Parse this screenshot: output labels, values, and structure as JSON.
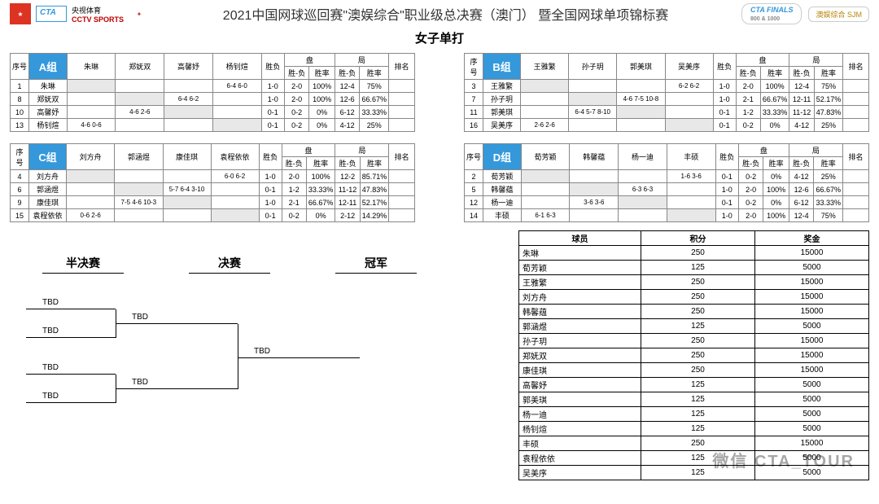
{
  "header": {
    "cctv_cn": "央视体育",
    "cctv_en": "CCTV SPORTS",
    "title": "2021中国网球巡回赛\"澳娱综合\"职业级总决赛（澳门） 暨全国网球单项锦标赛",
    "finals_badge": "CTA FINALS",
    "finals_sub": "800 & 1000",
    "sjm": "澳娱综合 SJM",
    "subtitle": "女子单打"
  },
  "group_headers": {
    "seq": "序号",
    "wl": "胜负",
    "pan": "盘",
    "ju": "局",
    "rank": "排名",
    "sf": "胜-负",
    "sl": "胜率"
  },
  "groups": [
    {
      "name": "A组",
      "players": [
        "朱琳",
        "郑妩双",
        "高馨妤",
        "杨钊煊"
      ],
      "rows": [
        {
          "seq": "1",
          "name": "朱琳",
          "vs": [
            "",
            "",
            "",
            "6-4 6-0"
          ],
          "wl": "1-0",
          "psf": "2-0",
          "psl": "100%",
          "jsf": "12-4",
          "jsl": "75%",
          "rank": ""
        },
        {
          "seq": "8",
          "name": "郑妩双",
          "vs": [
            "",
            "",
            "6-4 6-2",
            ""
          ],
          "wl": "1-0",
          "psf": "2-0",
          "psl": "100%",
          "jsf": "12-6",
          "jsl": "66.67%",
          "rank": ""
        },
        {
          "seq": "10",
          "name": "高馨妤",
          "vs": [
            "",
            "4-6 2-6",
            "",
            ""
          ],
          "wl": "0-1",
          "psf": "0-2",
          "psl": "0%",
          "jsf": "6-12",
          "jsl": "33.33%",
          "rank": ""
        },
        {
          "seq": "13",
          "name": "杨钊煊",
          "vs": [
            "4-6 0-6",
            "",
            "",
            ""
          ],
          "wl": "0-1",
          "psf": "0-2",
          "psl": "0%",
          "jsf": "4-12",
          "jsl": "25%",
          "rank": ""
        }
      ]
    },
    {
      "name": "B组",
      "players": [
        "王雅繁",
        "孙子玥",
        "郭美琪",
        "吴美序"
      ],
      "rows": [
        {
          "seq": "3",
          "name": "王雅繁",
          "vs": [
            "",
            "",
            "",
            "6-2 6-2"
          ],
          "wl": "1-0",
          "psf": "2-0",
          "psl": "100%",
          "jsf": "12-4",
          "jsl": "75%",
          "rank": ""
        },
        {
          "seq": "7",
          "name": "孙子玥",
          "vs": [
            "",
            "",
            "4-6 7-5 10-8",
            ""
          ],
          "wl": "1-0",
          "psf": "2-1",
          "psl": "66.67%",
          "jsf": "12-11",
          "jsl": "52.17%",
          "rank": ""
        },
        {
          "seq": "11",
          "name": "郭美琪",
          "vs": [
            "",
            "6-4 5-7 8-10",
            "",
            ""
          ],
          "wl": "0-1",
          "psf": "1-2",
          "psl": "33.33%",
          "jsf": "11-12",
          "jsl": "47.83%",
          "rank": ""
        },
        {
          "seq": "16",
          "name": "吴美序",
          "vs": [
            "2-6 2-6",
            "",
            "",
            ""
          ],
          "wl": "0-1",
          "psf": "0-2",
          "psl": "0%",
          "jsf": "4-12",
          "jsl": "25%",
          "rank": ""
        }
      ]
    },
    {
      "name": "C组",
      "players": [
        "刘方舟",
        "郭涵煜",
        "康佳琪",
        "袁程依依"
      ],
      "rows": [
        {
          "seq": "4",
          "name": "刘方舟",
          "vs": [
            "",
            "",
            "",
            "6-0 6-2"
          ],
          "wl": "1-0",
          "psf": "2-0",
          "psl": "100%",
          "jsf": "12-2",
          "jsl": "85.71%",
          "rank": ""
        },
        {
          "seq": "6",
          "name": "郭涵煜",
          "vs": [
            "",
            "",
            "5-7 6-4  3-10",
            ""
          ],
          "wl": "0-1",
          "psf": "1-2",
          "psl": "33.33%",
          "jsf": "11-12",
          "jsl": "47.83%",
          "rank": ""
        },
        {
          "seq": "9",
          "name": "康佳琪",
          "vs": [
            "",
            "7-5 4-6  10-3",
            "",
            ""
          ],
          "wl": "1-0",
          "psf": "2-1",
          "psl": "66.67%",
          "jsf": "12-11",
          "jsl": "52.17%",
          "rank": ""
        },
        {
          "seq": "15",
          "name": "袁程依依",
          "vs": [
            "0-6 2-6",
            "",
            "",
            ""
          ],
          "wl": "0-1",
          "psf": "0-2",
          "psl": "0%",
          "jsf": "2-12",
          "jsl": "14.29%",
          "rank": ""
        }
      ]
    },
    {
      "name": "D组",
      "players": [
        "荀芳颖",
        "韩馨蕴",
        "杨一迪",
        "丰硕"
      ],
      "rows": [
        {
          "seq": "2",
          "name": "荀芳颖",
          "vs": [
            "",
            "",
            "",
            "1-6 3-6"
          ],
          "wl": "0-1",
          "psf": "0-2",
          "psl": "0%",
          "jsf": "4-12",
          "jsl": "25%",
          "rank": ""
        },
        {
          "seq": "5",
          "name": "韩馨蕴",
          "vs": [
            "",
            "",
            "6-3 6-3",
            ""
          ],
          "wl": "1-0",
          "psf": "2-0",
          "psl": "100%",
          "jsf": "12-6",
          "jsl": "66.67%",
          "rank": ""
        },
        {
          "seq": "12",
          "name": "杨一迪",
          "vs": [
            "",
            "3-6 3-6",
            "",
            ""
          ],
          "wl": "0-1",
          "psf": "0-2",
          "psl": "0%",
          "jsf": "6-12",
          "jsl": "33.33%",
          "rank": ""
        },
        {
          "seq": "14",
          "name": "丰硕",
          "vs": [
            "6-1 6-3",
            "",
            "",
            ""
          ],
          "wl": "1-0",
          "psf": "2-0",
          "psl": "100%",
          "jsf": "12-4",
          "jsl": "75%",
          "rank": ""
        }
      ]
    }
  ],
  "bracket": {
    "sf": "半决赛",
    "f": "决赛",
    "ch": "冠军",
    "tbd": "TBD"
  },
  "points": {
    "h_player": "球员",
    "h_pts": "积分",
    "h_prize": "奖金",
    "rows": [
      {
        "n": "朱琳",
        "p": "250",
        "m": "15000"
      },
      {
        "n": "荀芳颖",
        "p": "125",
        "m": "5000"
      },
      {
        "n": "王雅繁",
        "p": "250",
        "m": "15000"
      },
      {
        "n": "刘方舟",
        "p": "250",
        "m": "15000"
      },
      {
        "n": "韩馨蕴",
        "p": "250",
        "m": "15000"
      },
      {
        "n": "郭涵煜",
        "p": "125",
        "m": "5000"
      },
      {
        "n": "孙子玥",
        "p": "250",
        "m": "15000"
      },
      {
        "n": "郑妩双",
        "p": "250",
        "m": "15000"
      },
      {
        "n": "康佳琪",
        "p": "250",
        "m": "15000"
      },
      {
        "n": "高馨妤",
        "p": "125",
        "m": "5000"
      },
      {
        "n": "郭美琪",
        "p": "125",
        "m": "5000"
      },
      {
        "n": "杨一迪",
        "p": "125",
        "m": "5000"
      },
      {
        "n": "杨钊煊",
        "p": "125",
        "m": "5000"
      },
      {
        "n": "丰硕",
        "p": "250",
        "m": "15000"
      },
      {
        "n": "袁程依依",
        "p": "125",
        "m": "5000"
      },
      {
        "n": "吴美序",
        "p": "125",
        "m": "5000"
      }
    ]
  },
  "watermark": "微信 CTA_TOUR"
}
